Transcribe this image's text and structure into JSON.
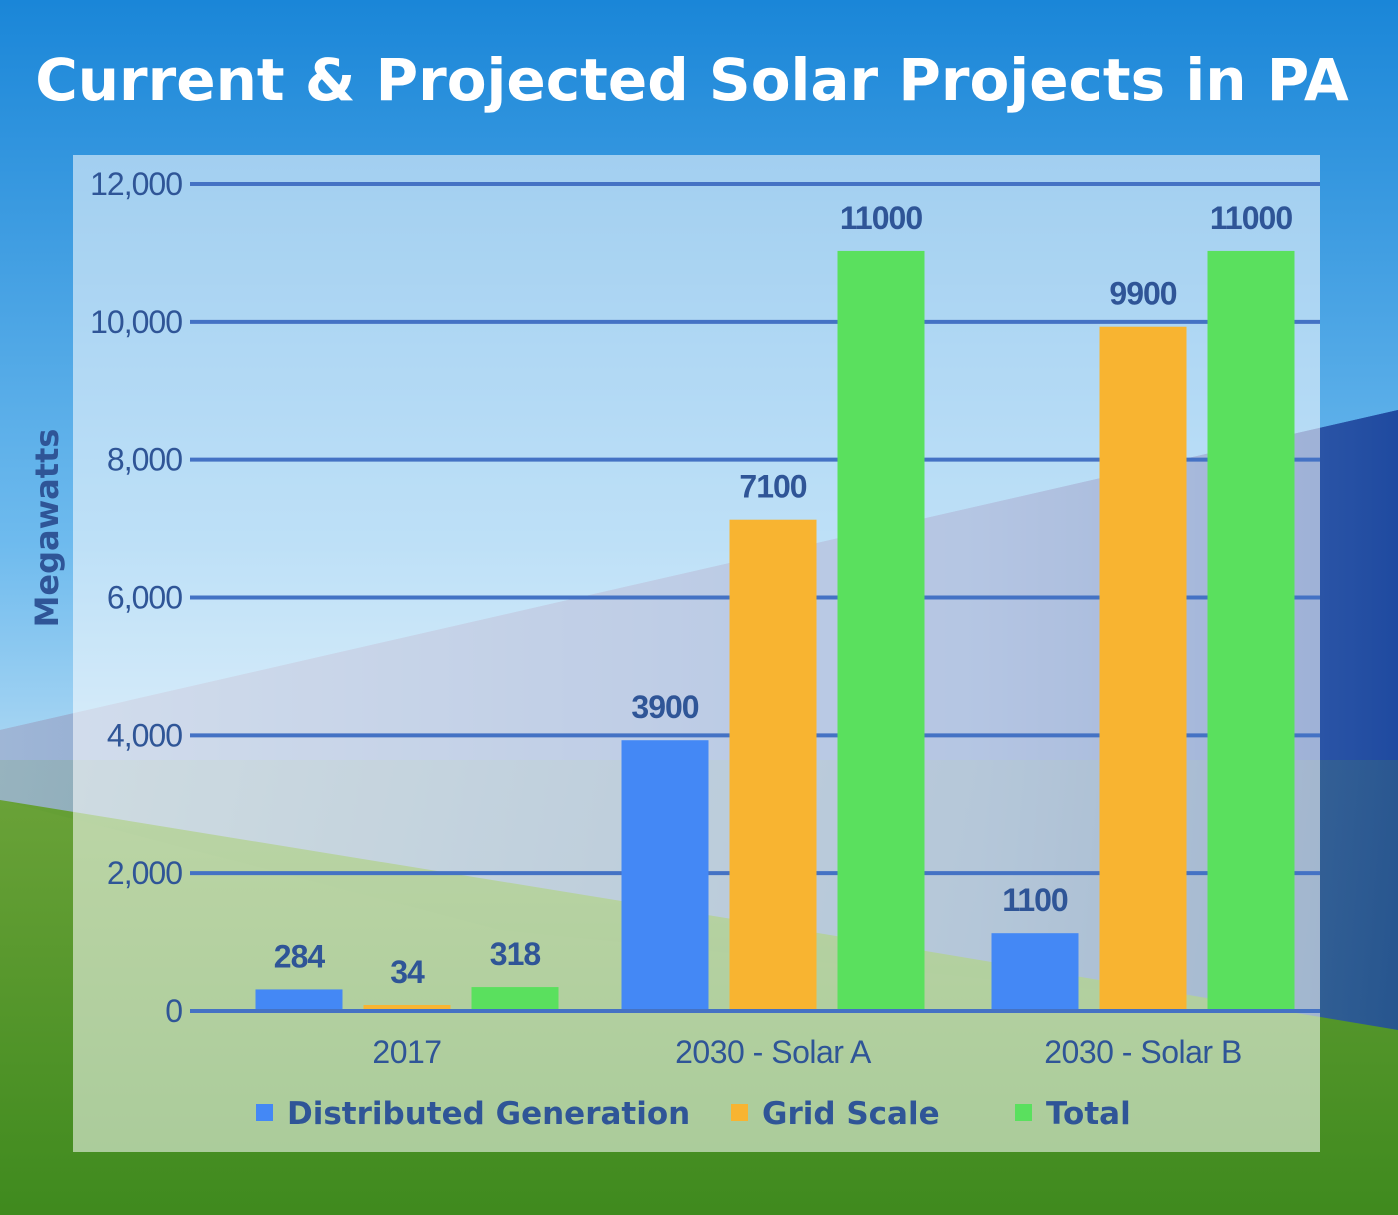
{
  "chart_data": {
    "type": "bar",
    "title": "Current & Projected Solar Projects in PA",
    "ylabel": "Megawatts",
    "xlabel": "",
    "ylim": [
      0,
      12000
    ],
    "yticks": [
      "0",
      "2,000",
      "4,000",
      "6,000",
      "8,000",
      "10,000",
      "12,000"
    ],
    "ytick_values": [
      0,
      2000,
      4000,
      6000,
      8000,
      10000,
      12000
    ],
    "grid": true,
    "legend_position": "bottom",
    "categories": [
      "2017",
      "2030 - Solar A",
      "2030 - Solar B"
    ],
    "series": [
      {
        "name": "Distributed Generation",
        "color": "#4488f5",
        "values": [
          284,
          3900,
          1100
        ]
      },
      {
        "name": "Grid Scale",
        "color": "#f8b431",
        "values": [
          34,
          7100,
          9900
        ]
      },
      {
        "name": "Total",
        "color": "#5ae05e",
        "values": [
          318,
          11000,
          11000
        ]
      }
    ]
  }
}
